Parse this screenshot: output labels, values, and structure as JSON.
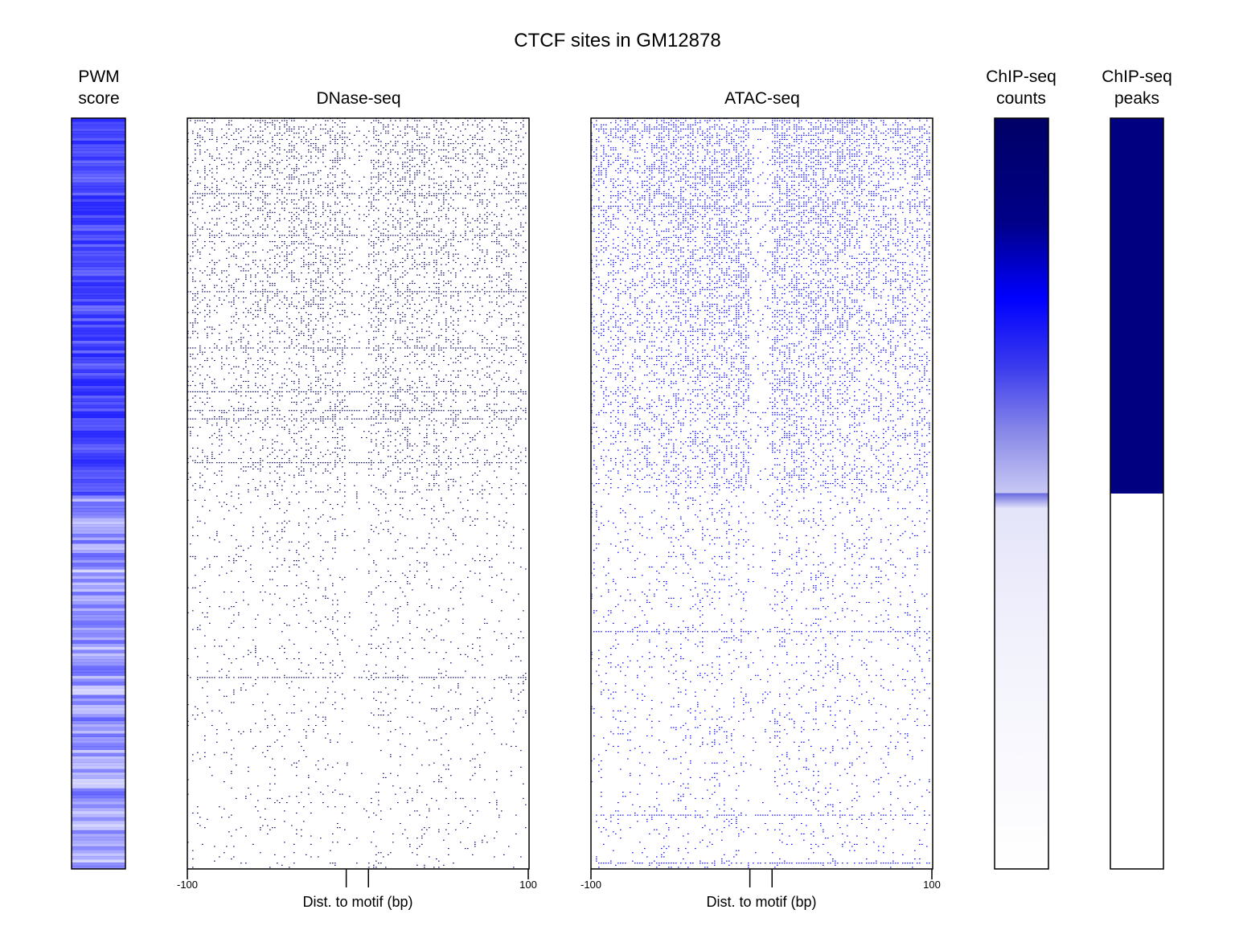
{
  "colors": {
    "background": "#ffffff",
    "dnase_mark": "#000066",
    "atac_mark": "#0000ff",
    "pwm_mark": "#0000ff",
    "chip_counts_high": "#000066",
    "chip_counts_mid": "#0000ff",
    "chip_peaks_fill": "#000080",
    "frame": "#000000"
  },
  "chart_data": {
    "title": "CTCF sites in GM12878",
    "type": "heatmap",
    "panels": [
      {
        "id": "pwm",
        "title_lines": [
          "PWM",
          "score"
        ],
        "type": "heatmap",
        "rows_sorted_by": "ChIP-seq counts (descending)",
        "description_of_values": "relative PWM score per site, 0-1"
      },
      {
        "id": "dnase",
        "title": "DNase-seq",
        "type": "heatmap",
        "xlabel": "Dist. to motif (bp)",
        "xlim": [
          -100,
          100
        ],
        "xticks": [
          "-100",
          "100"
        ],
        "motif_bounds": [
          -7,
          6
        ],
        "peak_flank_density_top": 0.28,
        "peak_flank_density_bottom": 0.04,
        "chip_peak_boundary_fraction": 0.5
      },
      {
        "id": "atac",
        "title": "ATAC-seq",
        "type": "heatmap",
        "xlabel": "Dist. to motif (bp)",
        "xlim": [
          -100,
          100
        ],
        "xticks": [
          "-100",
          "100"
        ],
        "motif_bounds": [
          -7,
          6
        ],
        "peak_flank_density_top": 0.42,
        "peak_flank_density_bottom": 0.06,
        "chip_peak_boundary_fraction": 0.5
      },
      {
        "id": "chip_counts",
        "title_lines": [
          "ChIP-seq",
          "counts"
        ],
        "type": "heatmap",
        "gradient": [
          {
            "fraction": 0.0,
            "color": "#000066"
          },
          {
            "fraction": 0.14,
            "color": "#000088"
          },
          {
            "fraction": 0.24,
            "color": "#0000ff"
          },
          {
            "fraction": 0.33,
            "color": "#3a3aee"
          },
          {
            "fraction": 0.42,
            "color": "#8a8ae8"
          },
          {
            "fraction": 0.499,
            "color": "#c8c8f4"
          },
          {
            "fraction": 0.5,
            "color": "#6a6ae0"
          },
          {
            "fraction": 0.52,
            "color": "#e4e4fa"
          },
          {
            "fraction": 0.7,
            "color": "#f2f2fc"
          },
          {
            "fraction": 0.88,
            "color": "#fafafe"
          },
          {
            "fraction": 1.0,
            "color": "#ffffff"
          }
        ]
      },
      {
        "id": "chip_peaks",
        "title_lines": [
          "ChIP-seq",
          "peaks"
        ],
        "type": "heatmap",
        "peak_fraction": 0.5,
        "peak_color": "#000080",
        "no_peak_color": "#ffffff"
      }
    ]
  }
}
